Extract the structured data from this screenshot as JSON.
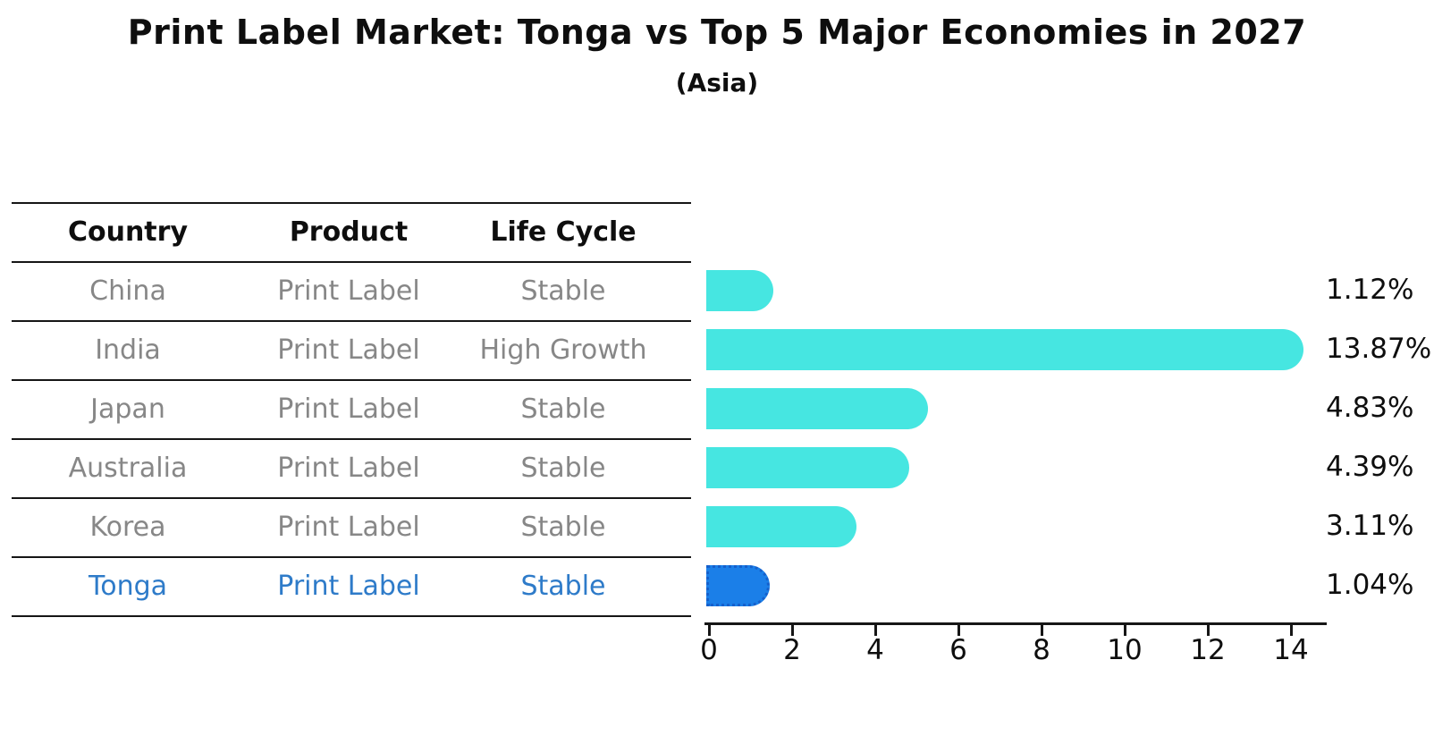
{
  "title": "Print Label Market: Tonga vs Top 5 Major Economies in 2027",
  "subtitle": "(Asia)",
  "table": {
    "headers": [
      "Country",
      "Product",
      "Life Cycle"
    ],
    "rows": [
      {
        "country": "China",
        "product": "Print Label",
        "life_cycle": "Stable",
        "highlight": false
      },
      {
        "country": "India",
        "product": "Print Label",
        "life_cycle": "High Growth",
        "highlight": false
      },
      {
        "country": "Japan",
        "product": "Print Label",
        "life_cycle": "Stable",
        "highlight": false
      },
      {
        "country": "Australia",
        "product": "Print Label",
        "life_cycle": "Stable",
        "highlight": false
      },
      {
        "country": "Korea",
        "product": "Print Label",
        "life_cycle": "Stable",
        "highlight": false
      },
      {
        "country": "Tonga",
        "product": "Print Label",
        "life_cycle": "Stable",
        "highlight": true
      }
    ]
  },
  "chart_data": {
    "type": "bar",
    "orientation": "horizontal",
    "title": "Print Label Market: Tonga vs Top 5 Major Economies in 2027",
    "subtitle": "(Asia)",
    "categories": [
      "China",
      "India",
      "Japan",
      "Australia",
      "Korea",
      "Tonga"
    ],
    "values": [
      1.12,
      13.87,
      4.83,
      4.39,
      3.11,
      1.04
    ],
    "value_labels": [
      "1.12%",
      "13.87%",
      "4.83%",
      "4.39%",
      "3.11%",
      "1.04%"
    ],
    "x_ticks": [
      "0",
      "2",
      "4",
      "6",
      "8",
      "10",
      "12",
      "14"
    ],
    "x_tick_values": [
      0,
      2,
      4,
      6,
      8,
      10,
      12,
      14
    ],
    "xlim": [
      0,
      14.9
    ],
    "grid": false,
    "legend": "none",
    "highlight_category": "Tonga",
    "highlight_index": 5
  },
  "colors": {
    "bar": "#46e6e1",
    "highlight_bar": "#1b7fe8",
    "highlight_bar_border": "#1560cc",
    "highlight_text": "#2e7bc9",
    "row_text": "#878787",
    "heading_text": "#0e0e0e",
    "line": "#161616",
    "background": "#ffffff"
  }
}
